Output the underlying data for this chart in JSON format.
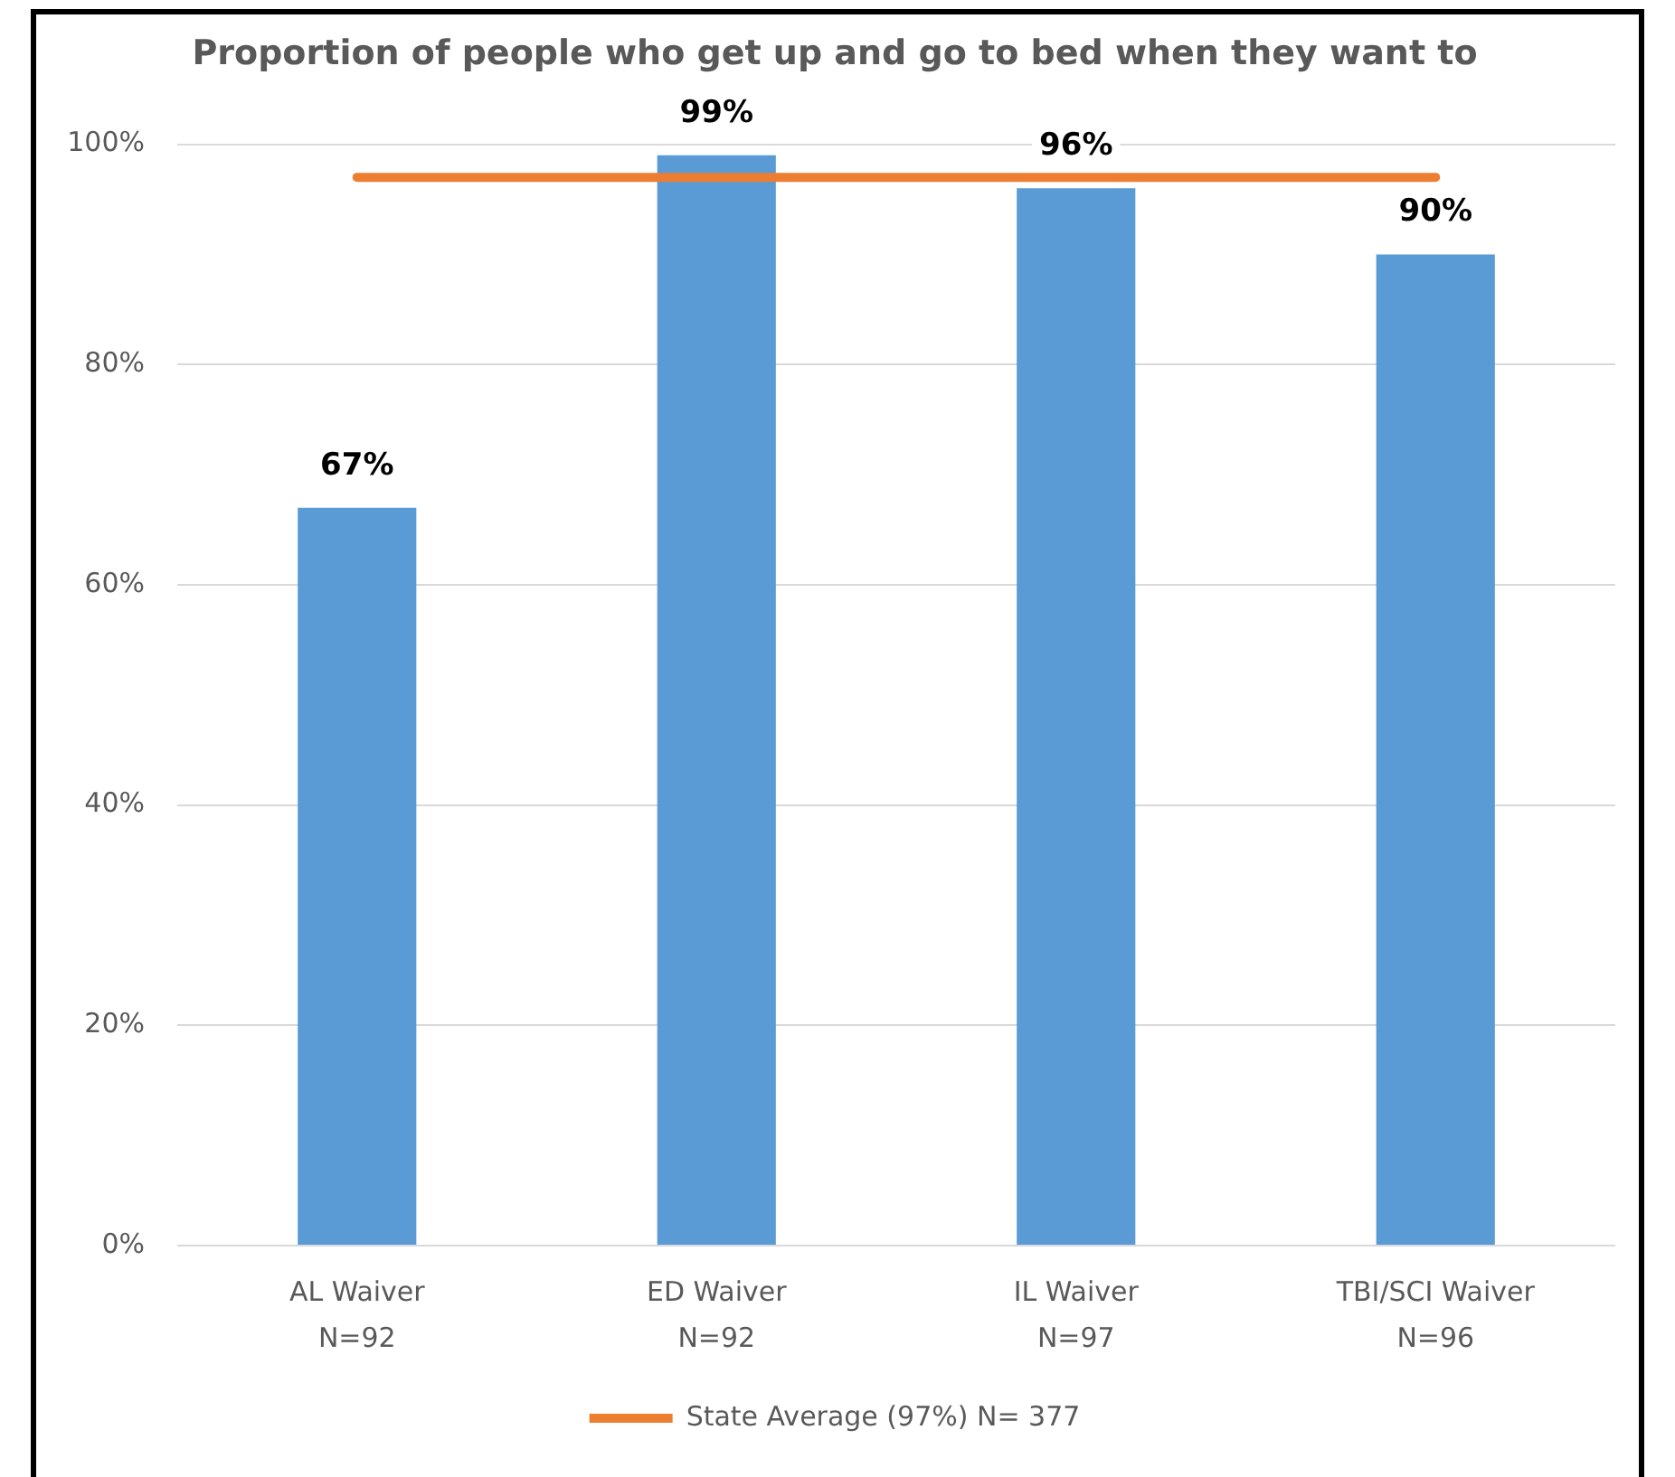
{
  "chart_data": {
    "type": "bar",
    "title": "Proportion of people who get up and go to bed when they want to",
    "categories": [
      "AL Waiver\nN=92",
      "ED Waiver\nN=92",
      "IL Waiver\nN=97",
      "TBI/SCI Waiver\nN=96"
    ],
    "series": [
      {
        "color": "#5b9bd5",
        "values": [
          67,
          99,
          96,
          90
        ],
        "value_labels": [
          "67%",
          "99%",
          "96%",
          "90%"
        ]
      },
      {
        "type": "line",
        "name": "State Average (97%) N= 377",
        "color": "#ed7d31",
        "values": [
          97,
          97,
          97,
          97
        ]
      }
    ],
    "ylim": [
      0,
      100
    ],
    "yticks": [
      {
        "value": 0,
        "label": "0%"
      },
      {
        "value": 20,
        "label": "20%"
      },
      {
        "value": 40,
        "label": "40%"
      },
      {
        "value": 60,
        "label": "60%"
      },
      {
        "value": 80,
        "label": "80%"
      },
      {
        "value": 100,
        "label": "100%"
      }
    ],
    "grid": "y",
    "legend": "bottom"
  }
}
